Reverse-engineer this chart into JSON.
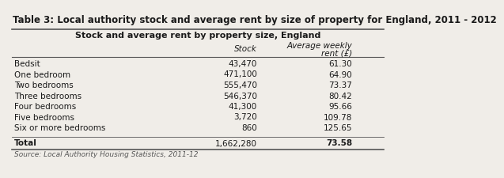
{
  "title": "Table 3: Local authority stock and average rent by size of property for England, 2011 - 2012",
  "subtitle": "Stock and average rent by property size, England",
  "col_header1": "Stock",
  "col_header2_line1": "Average weekly",
  "col_header2_line2": "rent (£)",
  "rows": [
    [
      "Bedsit",
      "43,470",
      "61.30"
    ],
    [
      "One bedroom",
      "471,100",
      "64.90"
    ],
    [
      "Two bedrooms",
      "555,470",
      "73.37"
    ],
    [
      "Three bedrooms",
      "546,370",
      "80.42"
    ],
    [
      "Four bedrooms",
      "41,300",
      "95.66"
    ],
    [
      "Five bedrooms",
      "3,720",
      "109.78"
    ],
    [
      "Six or more bedrooms",
      "860",
      "125.65"
    ]
  ],
  "total_label": "Total",
  "total_stock": "1,662,280",
  "total_rent": "73.58",
  "source": "Source: Local Authority Housing Statistics, 2011-12",
  "bg_color": "#f0ede8",
  "title_fontsize": 8.5,
  "subtitle_fontsize": 8.0,
  "body_fontsize": 7.5,
  "source_fontsize": 6.5
}
